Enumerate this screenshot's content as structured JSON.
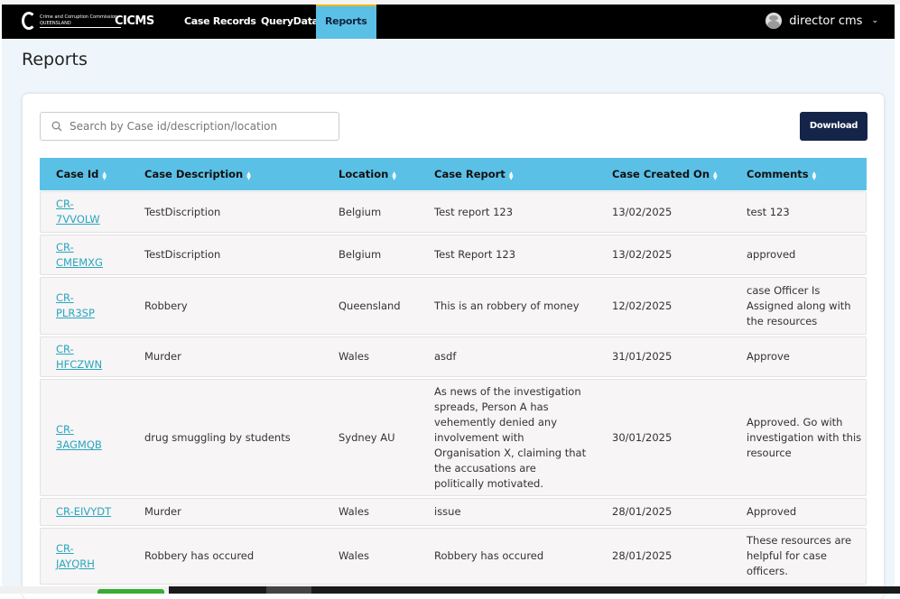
{
  "nav": {
    "org": "Crime and Corruption Commission",
    "org_sub": "QUEENSLAND",
    "brand": "CICMS",
    "links": [
      "Case Records",
      "QueryData",
      "Reports"
    ],
    "active": "Reports",
    "user": "director cms"
  },
  "page": {
    "title": "Reports"
  },
  "search": {
    "placeholder": "Search by Case id/description/location"
  },
  "download_label": "Download",
  "columns": [
    "Case Id",
    "Case Description",
    "Location",
    "Case Report",
    "Case Created On",
    "Comments"
  ],
  "rows": [
    {
      "id": "CR-7VVOLW",
      "desc": "TestDiscription",
      "loc": "Belgium",
      "report": "Test report 123",
      "created": "13/02/2025",
      "comments": "test 123"
    },
    {
      "id": "CR-CMEMXG",
      "desc": "TestDiscription",
      "loc": "Belgium",
      "report": "Test Report 123",
      "created": "13/02/2025",
      "comments": "approved"
    },
    {
      "id": "CR-PLR3SP",
      "desc": "Robbery",
      "loc": "Queensland",
      "report": "This is an robbery of money",
      "created": "12/02/2025",
      "comments": "case Officer Is Assigned along with the resources"
    },
    {
      "id": "CR-HFCZWN",
      "desc": "Murder",
      "loc": "Wales",
      "report": "asdf",
      "created": "31/01/2025",
      "comments": "Approve"
    },
    {
      "id": "CR-3AGMQB",
      "desc": "drug smuggling by students",
      "loc": "Sydney AU",
      "report": "As news of the investigation spreads, Person A has vehemently denied any involvement with Organisation X, claiming that the accusations are politically motivated.",
      "created": "30/01/2025",
      "comments": "Approved. Go with investigation with this resource"
    },
    {
      "id": "CR-EIVYDT",
      "desc": "Murder",
      "loc": "Wales",
      "report": "issue",
      "created": "28/01/2025",
      "comments": "Approved"
    },
    {
      "id": "CR-JAYQRH",
      "desc": "Robbery has occured",
      "loc": "Wales",
      "report": "Robbery has occured",
      "created": "28/01/2025",
      "comments": "These resources are helpful for case officers."
    }
  ],
  "colors": {
    "header_bg": "#000000",
    "accent": "#5bc0e6",
    "button": "#15254a",
    "link": "#2aa6bd"
  }
}
